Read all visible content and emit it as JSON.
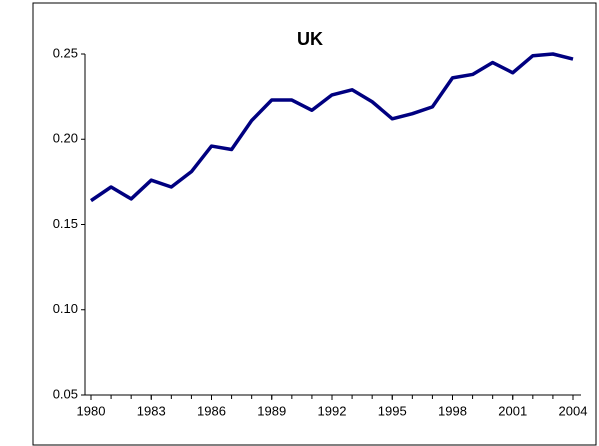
{
  "chart_data": {
    "type": "line",
    "title": "UK",
    "x": [
      1980,
      1981,
      1982,
      1983,
      1984,
      1985,
      1986,
      1987,
      1988,
      1989,
      1990,
      1991,
      1992,
      1993,
      1994,
      1995,
      1996,
      1997,
      1998,
      1999,
      2000,
      2001,
      2002,
      2003,
      2004
    ],
    "series": [
      {
        "name": "UK",
        "color": "#000080",
        "values": [
          0.164,
          0.172,
          0.165,
          0.176,
          0.172,
          0.181,
          0.196,
          0.194,
          0.211,
          0.223,
          0.223,
          0.217,
          0.226,
          0.229,
          0.222,
          0.212,
          0.215,
          0.219,
          0.236,
          0.238,
          0.245,
          0.239,
          0.249,
          0.25,
          0.247
        ]
      }
    ],
    "xlim": [
      1980,
      2004
    ],
    "xticks": [
      1980,
      1983,
      1986,
      1989,
      1992,
      1995,
      1998,
      2001,
      2004
    ],
    "ylim": [
      0.05,
      0.25
    ],
    "yticks": [
      0.05,
      {
        "value": 0.1,
        "label": "0.10"
      },
      0.15,
      {
        "value": 0.2,
        "label": "0.20"
      },
      0.25
    ],
    "grid": false
  }
}
